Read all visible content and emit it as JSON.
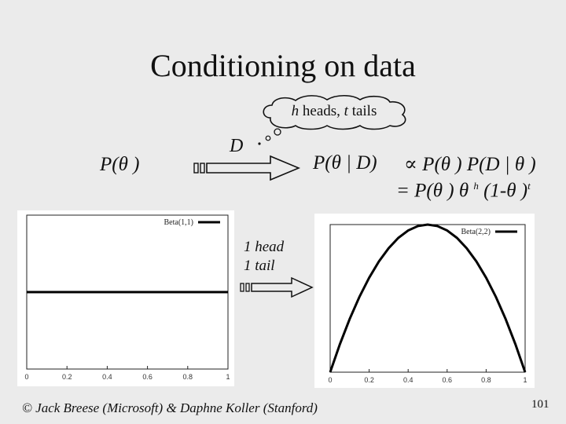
{
  "slide": {
    "title": "Conditioning on data",
    "thought": {
      "h": "h",
      "heads": " heads, ",
      "t": "t",
      "tails": " tails"
    },
    "prior_label": "P(θ )",
    "data_label": "D",
    "posterior_label": "P(θ | D)",
    "formula_line1": "∝ P(θ ) P(D | θ )",
    "formula_line2_a": "= P(θ ) θ ",
    "formula_line2_h": "h",
    "formula_line2_b": " (1-θ )",
    "formula_line2_t": "t",
    "update_line1": "1 head",
    "update_line2": "1 tail",
    "footer": "© Jack Breese (Microsoft) & Daphne Koller (Stanford)",
    "page_number": "101"
  },
  "chart_data": [
    {
      "type": "line",
      "series": [
        {
          "name": "Beta(1,1)",
          "x": [
            0,
            1
          ],
          "y": [
            1,
            1
          ]
        }
      ],
      "xticks": [
        "0",
        "0.2",
        "0.4",
        "0.6",
        "0.8",
        "1"
      ],
      "xlim": [
        0,
        1
      ],
      "ylim": [
        0,
        2
      ],
      "legend": "top-right"
    },
    {
      "type": "line",
      "series": [
        {
          "name": "Beta(2,2)",
          "x": [
            0,
            0.05,
            0.1,
            0.15,
            0.2,
            0.25,
            0.3,
            0.35,
            0.4,
            0.45,
            0.5,
            0.55,
            0.6,
            0.65,
            0.7,
            0.75,
            0.8,
            0.85,
            0.9,
            0.95,
            1
          ],
          "y": [
            0,
            0.285,
            0.54,
            0.765,
            0.96,
            1.125,
            1.26,
            1.365,
            1.44,
            1.485,
            1.5,
            1.485,
            1.44,
            1.365,
            1.26,
            1.125,
            0.96,
            0.765,
            0.54,
            0.285,
            0
          ]
        }
      ],
      "xticks": [
        "0",
        "0.2",
        "0.4",
        "0.6",
        "0.8",
        "1"
      ],
      "xlim": [
        0,
        1
      ],
      "ylim": [
        0,
        1.5
      ],
      "legend": "top-right"
    }
  ]
}
